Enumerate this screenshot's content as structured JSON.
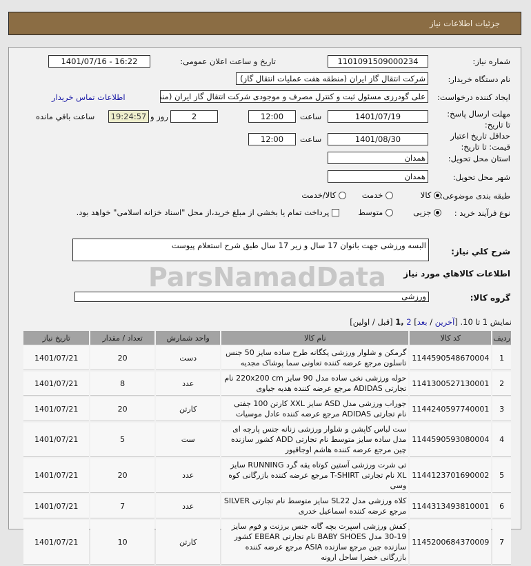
{
  "header": {
    "title": "جزئیات اطلاعات نیاز"
  },
  "form": {
    "need_number_label": "شماره نیاز:",
    "need_number": "1101091509000234",
    "announce_label": "تاریخ و ساعت اعلان عمومی:",
    "announce_value": "1401/07/16 - 16:22",
    "buyer_label": "نام دستگاه خریدار:",
    "buyer": "شرکت انتقال گاز ایران (منطقه هفت عملیات انتقال گاز)",
    "creator_label": "ایجاد کننده درخواست:",
    "creator": "علی گودرزی مسئول ثبت و کنترل مصرف و موجودی شرکت انتقال گاز ایران (منطقه",
    "contact_link": "اطلاعات تماس خریدار",
    "deadline_label": "مهلت ارسال پاسخ: تا تاریخ:",
    "deadline_date": "1401/07/19",
    "time_label": "ساعت",
    "deadline_time": "12:00",
    "days": "2",
    "days_label": "روز و",
    "remaining": "19:24:57",
    "remaining_label": "ساعت باقي مانده",
    "validity_label": "حداقل تاریخ اعتبار قیمت: تا تاریخ:",
    "validity_date": "1401/08/30",
    "validity_time": "12:00",
    "province_label": "استان محل تحویل:",
    "province": "همدان",
    "city_label": "شهر محل تحویل:",
    "city": "همدان",
    "category_label": "طبقه بندی موضوعی:",
    "category_options": [
      "کالا",
      "خدمت",
      "کالا/خدمت"
    ],
    "category_selected": "کالا",
    "process_label": "نوع فرآیند خرید :",
    "process_options": [
      "جزیی",
      "متوسط"
    ],
    "process_selected": "جزیی",
    "payment_note": "پرداخت تمام یا بخشی از مبلغ خرید،از محل \"اسناد خزانه اسلامی\" خواهد بود.",
    "desc_label": "شرح کلي نياز:",
    "desc": "البسه ورزشی جهت بانوان 17 سال و زیر 17 سال طبق شرح استعلام پیوست",
    "items_title": "اطلاعات کالاهاي مورد نياز",
    "group_label": "گروه کالا:",
    "group": "ورزشی"
  },
  "pagination": {
    "prefix": "نمایش 1 تا 10.",
    "open": "[",
    "last": "آخرین",
    "sep": "/",
    "next": "بعد",
    "close": "]",
    "page2": "2",
    "page1": ",1",
    "tail": "[قبل / اولین]"
  },
  "watermark": "ParsNamadData",
  "table": {
    "headers": [
      "ردیف",
      "کد کالا",
      "نام کالا",
      "واحد شمارش",
      "تعداد / مقدار",
      "تاریخ نیاز"
    ],
    "rows": [
      [
        "1",
        "1144590548670004",
        "گرمکن و شلوار ورزشی یکگانه طرح ساده سایز 50 جنس تاسلون مرجع عرضه کننده تعاونی سما پوشاک مجدیه",
        "دست",
        "20",
        "1401/07/21"
      ],
      [
        "2",
        "1141300527130001",
        "حوله ورزشی نخی ساده مدل 90 سایز 220x200 cm نام تجارتی ADIDAS مرجع عرضه کننده هدیه جیاوی",
        "عدد",
        "8",
        "1401/07/21"
      ],
      [
        "3",
        "1144240597740001",
        "جوراب ورزشی مدل ASD سایز XXL کارتن 100 جفتی نام تجارتی ADIDAS مرجع عرضه کننده عادل موسیات",
        "کارتن",
        "20",
        "1401/07/21"
      ],
      [
        "4",
        "1144590593080004",
        "ست لباس کاپشن و شلوار ورزشی زنانه جنس پارچه ای مدل ساده سایز متوسط نام تجارتی ADD کشور سازنده چین مرجع عرضه کننده هاشم اوجاقپور",
        "ست",
        "5",
        "1401/07/21"
      ],
      [
        "5",
        "1144123701690002",
        "تی شرت ورزشی آستین کوتاه یقه گرد RUNNING سایز XL نام تجارتی T-SHIRT مرجع عرضه کننده بازرگانی کوه وسی",
        "عدد",
        "20",
        "1401/07/21"
      ],
      [
        "6",
        "1144313493810001",
        "کلاه ورزشی مدل SL22 سایز متوسط نام تجارتی SILVER مرجع عرضه کننده اسماعیل خدری",
        "عدد",
        "7",
        "1401/07/21"
      ],
      [
        "7",
        "1145200684370009",
        "کفش ورزشی اسپرت بچه گانه جنس برزنت و فوم سایز 19-30 مدل BABY SHOES نام تجارتی EBEAR کشور سازنده چین مرجع سازنده ASIA مرجع عرضه کننده بازرگانی خضرا ساحل ارونه",
        "کارتن",
        "10",
        "1401/07/21"
      ]
    ]
  }
}
